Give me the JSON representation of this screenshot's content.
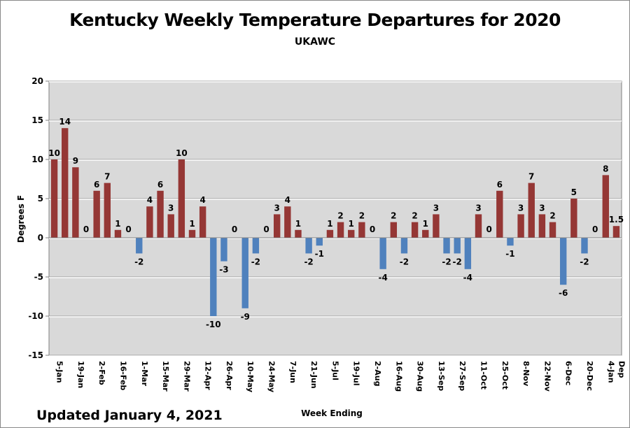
{
  "chart_data": {
    "type": "bar",
    "title": "Kentucky Weekly Temperature Departures for 2020",
    "subtitle": "UKAWC",
    "xlabel": "Week Ending",
    "ylabel": "Degrees F",
    "ylim": [
      -15,
      20
    ],
    "yticks": [
      -15,
      -10,
      -5,
      0,
      5,
      10,
      15,
      20
    ],
    "grid": true,
    "legend": "none",
    "colors": {
      "positive": "#953735",
      "negative": "#4f81bd",
      "plot_bg": "#d9d9d9",
      "grid": "#ffffff"
    },
    "tick_labels": [
      "5-Jan",
      "19-Jan",
      "2-Feb",
      "16-Feb",
      "1-Mar",
      "15-Mar",
      "29-Mar",
      "12-Apr",
      "26-Apr",
      "10-May",
      "24-May",
      "7-Jun",
      "21-Jun",
      "5-Jul",
      "19-Jul",
      "2-Aug",
      "16-Aug",
      "30-Aug",
      "13-Sep",
      "27-Sep",
      "11-Oct",
      "25-Oct",
      "8-Nov",
      "22-Nov",
      "6-Dec",
      "20-Dec",
      "4-Jan",
      "Dep"
    ],
    "values": [
      10,
      14,
      9,
      0,
      6,
      7,
      1,
      0,
      -2,
      4,
      6,
      3,
      10,
      1,
      4,
      -10,
      -3,
      0,
      -9,
      -2,
      0,
      3,
      4,
      1,
      -2,
      -1,
      1,
      2,
      1,
      2,
      0,
      -4,
      2,
      -2,
      2,
      1,
      3,
      -2,
      -2,
      -4,
      3,
      0,
      6,
      -1,
      3,
      7,
      3,
      2,
      -6,
      5,
      -2,
      0,
      8,
      1.5
    ]
  },
  "footer": {
    "updated": "Updated January 4, 2021"
  }
}
